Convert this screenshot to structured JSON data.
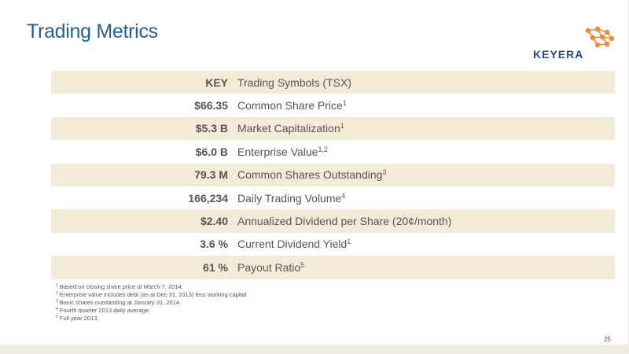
{
  "header": {
    "title": "Trading Metrics"
  },
  "logo": {
    "text": "KEYERA"
  },
  "rows": [
    {
      "value": "KEY",
      "label": "Trading Symbols (TSX)",
      "sup": ""
    },
    {
      "value": "$66.35",
      "label": "Common Share Price",
      "sup": "1"
    },
    {
      "value": "$5.3 B",
      "label": "Market Capitalization",
      "sup": "1"
    },
    {
      "value": "$6.0 B",
      "label": "Enterprise Value",
      "sup": "1,2"
    },
    {
      "value": "79.3 M",
      "label": "Common Shares Outstanding",
      "sup": "3"
    },
    {
      "value": "166,234",
      "label": "Daily Trading Volume",
      "sup": "4"
    },
    {
      "value": "$2.40",
      "label": "Annualized Dividend per Share (20¢/month)",
      "sup": ""
    },
    {
      "value": "3.6 %",
      "label": "Current Dividend Yield",
      "sup": "1"
    },
    {
      "value": "61 %",
      "label": "Payout Ratio",
      "sup": "5"
    }
  ],
  "footnotes": [
    {
      "num": "1",
      "text": "Based on closing share price at March 7, 2014."
    },
    {
      "num": "2",
      "text": "Enterprise value includes debt (as at Dec 31, 2013) less working capital"
    },
    {
      "num": "3",
      "text": "Basic shares outstanding at January 31, 2014."
    },
    {
      "num": "4",
      "text": "Fourth quarter 2013 daily average."
    },
    {
      "num": "5",
      "text": "Full year 2013."
    }
  ],
  "page_number": "25",
  "colors": {
    "title": "#1f5f9e",
    "row_shade": "#f4ead8",
    "logo_orange": "#f08a2c",
    "logo_blue": "#1f4e8c"
  }
}
